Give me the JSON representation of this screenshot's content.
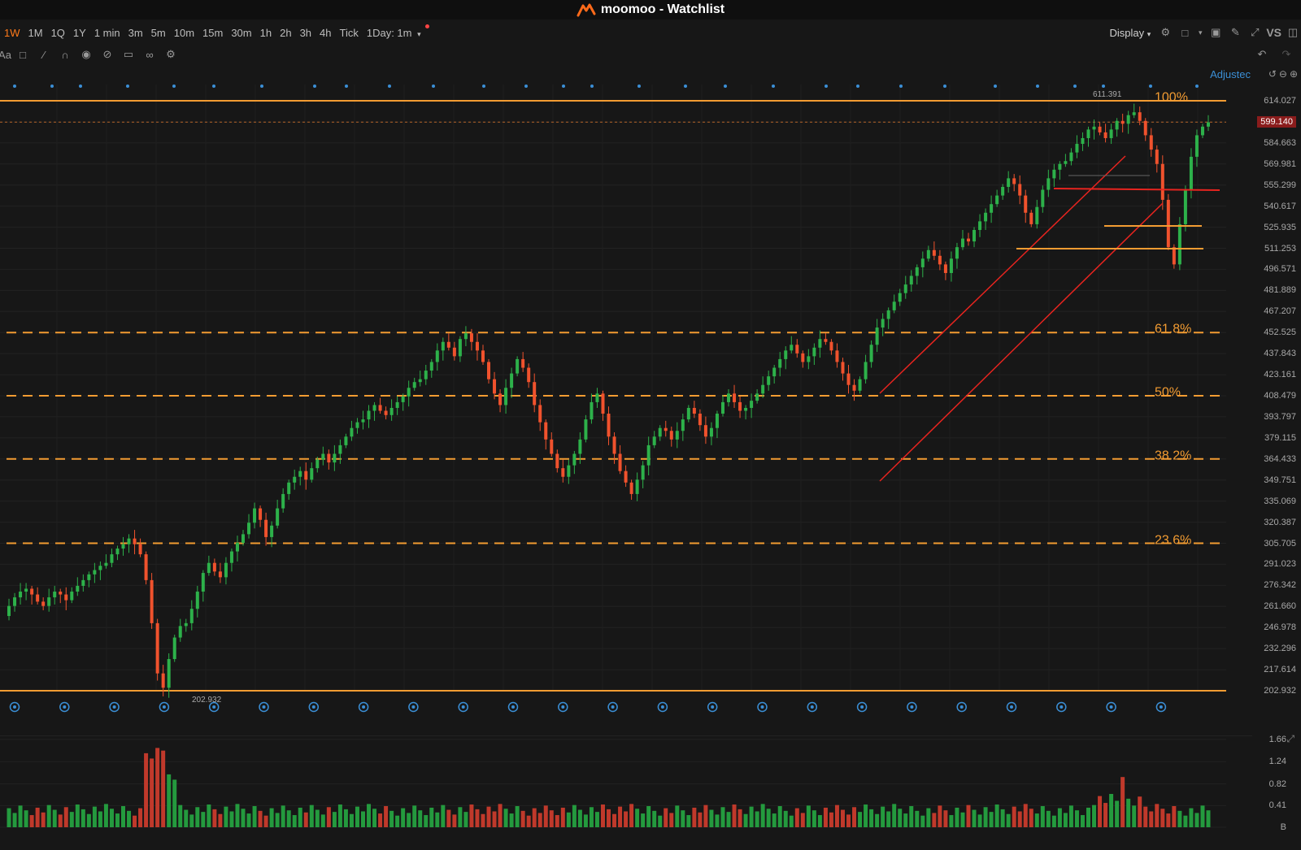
{
  "window": {
    "title": "moomoo - Watchlist"
  },
  "timeframes": [
    {
      "label": "1W",
      "active": true
    },
    {
      "label": "1M",
      "active": false
    },
    {
      "label": "1Q",
      "active": false
    },
    {
      "label": "1Y",
      "active": false
    },
    {
      "label": "1 min",
      "active": false
    },
    {
      "label": "3m",
      "active": false
    },
    {
      "label": "5m",
      "active": false
    },
    {
      "label": "10m",
      "active": false
    },
    {
      "label": "15m",
      "active": false
    },
    {
      "label": "30m",
      "active": false
    },
    {
      "label": "1h",
      "active": false
    },
    {
      "label": "2h",
      "active": false
    },
    {
      "label": "3h",
      "active": false
    },
    {
      "label": "4h",
      "active": false
    },
    {
      "label": "Tick",
      "active": false
    }
  ],
  "intraday_dropdown": "1Day: 1m",
  "toolbar": {
    "display_label": "Display",
    "vs_label": "VS"
  },
  "adjusted_label": "Adjustec",
  "colors": {
    "up": "#2db14a",
    "down": "#f0522d",
    "fib": "#f39c32",
    "channel": "#e8241f",
    "accent": "#ff7a1a",
    "dots": "#3b8fd6",
    "background": "#171717"
  },
  "icons": {
    "toolbar_right": [
      "gear-icon",
      "square-icon",
      "camera-icon",
      "pencil-icon",
      "fullscreen-icon",
      "panel-icon"
    ],
    "toolbar_left": [
      "text-icon",
      "comment-icon",
      "line-icon",
      "magnet-icon",
      "eye-icon",
      "hide-icon",
      "trash-icon",
      "link-icon",
      "settings-icon"
    ]
  },
  "chart_data": {
    "type": "candlestick",
    "y_axis_labels": [
      "614.027",
      "599.140",
      "584.663",
      "569.981",
      "555.299",
      "540.617",
      "525.935",
      "511.253",
      "496.571",
      "481.889",
      "467.207",
      "452.525",
      "437.843",
      "423.161",
      "408.479",
      "393.797",
      "379.115",
      "364.433",
      "349.751",
      "335.069",
      "320.387",
      "305.705",
      "291.023",
      "276.342",
      "261.660",
      "246.978",
      "232.296",
      "217.614",
      "202.932"
    ],
    "ylim": [
      202.932,
      614.027
    ],
    "current_price": "599.140",
    "fibonacci": [
      {
        "label": "100%",
        "value": 614.027
      },
      {
        "label": "61.8%",
        "value": 452.525
      },
      {
        "label": "50%",
        "value": 408.479
      },
      {
        "label": "38.2%",
        "value": 364.433
      },
      {
        "label": "23.6%",
        "value": 305.705
      }
    ],
    "base_line": 202.932,
    "high_annotation": "611.391",
    "low_annotation": "202.932",
    "weekly_closes": [
      255,
      262,
      268,
      272,
      274,
      270,
      265,
      262,
      268,
      272,
      270,
      266,
      272,
      276,
      280,
      284,
      287,
      290,
      292,
      298,
      302,
      305,
      309,
      305,
      298,
      280,
      250,
      215,
      205,
      225,
      240,
      248,
      250,
      260,
      272,
      285,
      292,
      286,
      282,
      292,
      300,
      306,
      312,
      320,
      330,
      322,
      310,
      318,
      330,
      340,
      348,
      352,
      356,
      350,
      358,
      364,
      368,
      362,
      368,
      374,
      380,
      386,
      390,
      392,
      398,
      402,
      398,
      395,
      400,
      404,
      408,
      414,
      418,
      420,
      426,
      432,
      440,
      446,
      442,
      436,
      448,
      452,
      446,
      440,
      432,
      420,
      410,
      402,
      414,
      424,
      434,
      428,
      418,
      402,
      390,
      378,
      368,
      358,
      352,
      360,
      368,
      378,
      392,
      404,
      410,
      396,
      380,
      368,
      356,
      348,
      340,
      350,
      360,
      374,
      380,
      386,
      384,
      378,
      384,
      392,
      400,
      396,
      388,
      380,
      386,
      396,
      404,
      410,
      404,
      398,
      400,
      405,
      410,
      416,
      422,
      428,
      434,
      440,
      444,
      438,
      432,
      436,
      442,
      448,
      446,
      440,
      432,
      424,
      416,
      412,
      420,
      432,
      444,
      456,
      462,
      468,
      474,
      480,
      486,
      492,
      498,
      504,
      510,
      506,
      500,
      494,
      504,
      512,
      518,
      516,
      524,
      530,
      536,
      542,
      548,
      554,
      560,
      556,
      548,
      536,
      528,
      540,
      552,
      560,
      566,
      570,
      572,
      578,
      584,
      588,
      594,
      596,
      592,
      588,
      594,
      600,
      598,
      604,
      606,
      600,
      590,
      580,
      570,
      545,
      512,
      500,
      528,
      552,
      575,
      590,
      596,
      599
    ]
  },
  "volume_axis_labels": [
    "1.66",
    "1.24",
    "0.82",
    "0.41",
    "B"
  ]
}
